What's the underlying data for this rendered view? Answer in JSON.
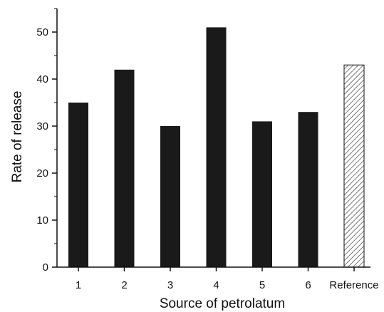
{
  "chart_data": {
    "type": "bar",
    "title": "",
    "xlabel": "Source of petrolatum",
    "ylabel": "Rate of release",
    "categories": [
      "1",
      "2",
      "3",
      "4",
      "5",
      "6",
      "Reference"
    ],
    "values": [
      35,
      42,
      30,
      51,
      31,
      33,
      43
    ],
    "bar_styles": [
      "solid",
      "solid",
      "solid",
      "solid",
      "solid",
      "solid",
      "hatched"
    ],
    "ylim": [
      0,
      55
    ],
    "yticks": [
      0,
      10,
      20,
      30,
      40,
      50
    ],
    "y_minor_step": 5,
    "grid": false,
    "legend": "none",
    "colors": {
      "bar_fill": "#1a1a1a",
      "hatch": "#333333",
      "axis": "#111111",
      "background": "#ffffff"
    }
  }
}
